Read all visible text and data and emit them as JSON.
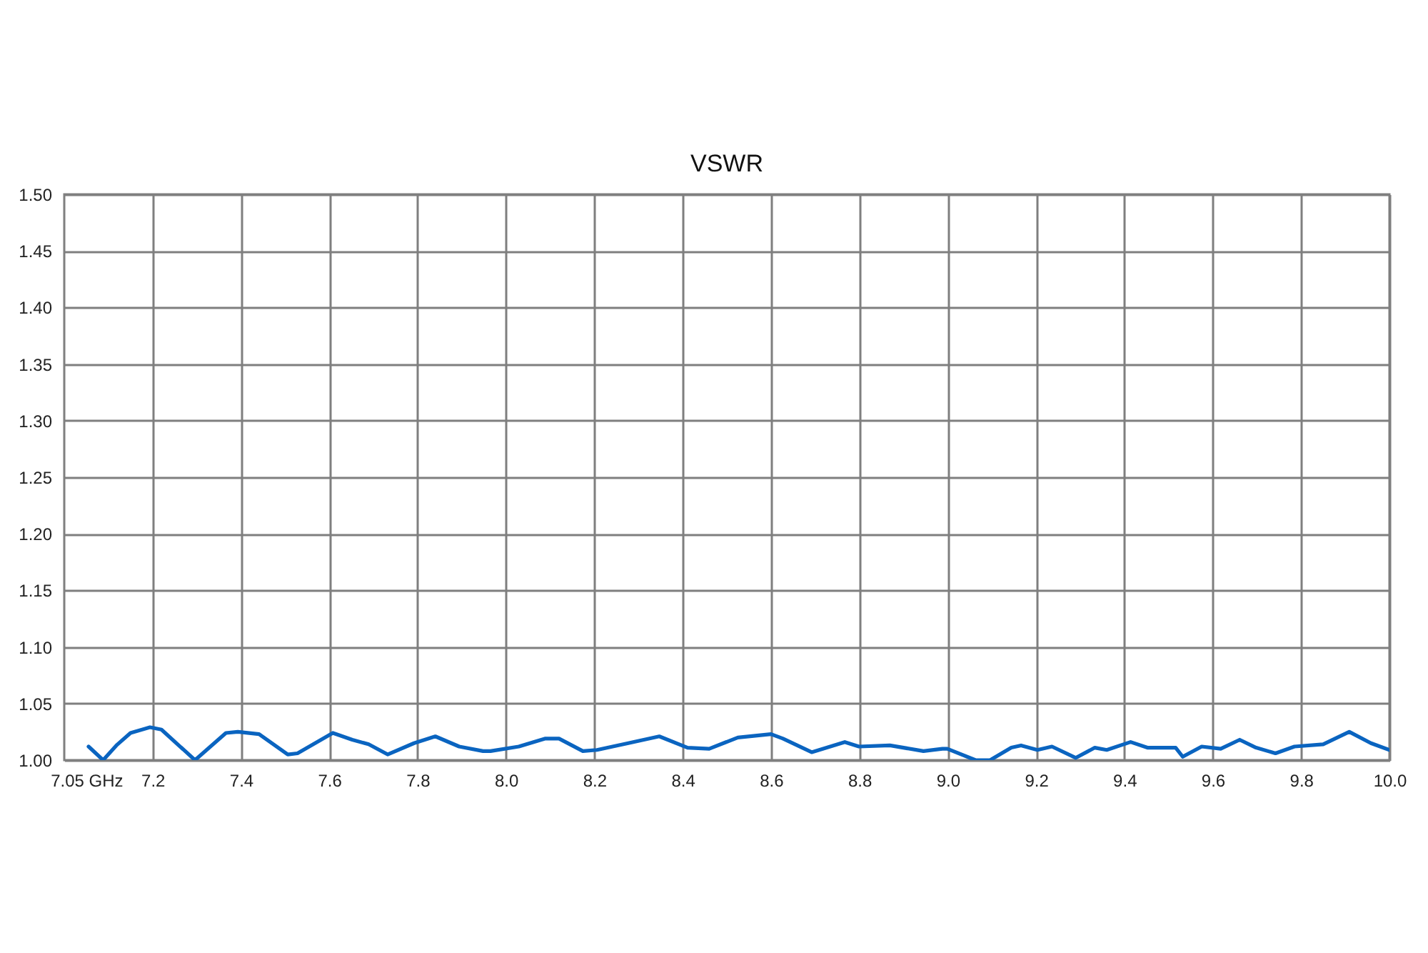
{
  "chart_data": {
    "type": "line",
    "title": "VSWR",
    "x": [
      7.055,
      7.088,
      7.118,
      7.15,
      7.194,
      7.22,
      7.296,
      7.366,
      7.393,
      7.441,
      7.506,
      7.528,
      7.608,
      7.652,
      7.689,
      7.732,
      7.792,
      7.84,
      7.894,
      7.948,
      7.965,
      8.029,
      8.088,
      8.12,
      8.174,
      8.206,
      8.277,
      8.347,
      8.411,
      8.46,
      8.525,
      8.6,
      8.627,
      8.692,
      8.767,
      8.799,
      8.869,
      8.945,
      8.988,
      8.999,
      9.063,
      9.096,
      9.144,
      9.166,
      9.203,
      9.236,
      9.29,
      9.333,
      9.36,
      9.414,
      9.452,
      9.516,
      9.532,
      9.575,
      9.618,
      9.661,
      9.698,
      9.742,
      9.785,
      9.85,
      9.909,
      9.958,
      10.0
    ],
    "series": [
      {
        "color": "#0a64c0",
        "values": [
          1.012,
          1.0,
          1.013,
          1.024,
          1.029,
          1.027,
          1.0,
          1.024,
          1.025,
          1.023,
          1.005,
          1.006,
          1.024,
          1.018,
          1.014,
          1.005,
          1.015,
          1.021,
          1.012,
          1.008,
          1.008,
          1.012,
          1.019,
          1.019,
          1.008,
          1.009,
          1.015,
          1.021,
          1.011,
          1.01,
          1.02,
          1.023,
          1.019,
          1.007,
          1.016,
          1.012,
          1.013,
          1.008,
          1.01,
          1.01,
          1.0,
          1.0,
          1.011,
          1.013,
          1.009,
          1.012,
          1.002,
          1.011,
          1.009,
          1.016,
          1.011,
          1.011,
          1.003,
          1.012,
          1.01,
          1.018,
          1.011,
          1.006,
          1.012,
          1.014,
          1.025,
          1.015,
          1.009
        ]
      }
    ],
    "xlim": [
      7.0,
      10.0
    ],
    "xticks": [
      {
        "value": 7.05,
        "label": "7.05 GHz"
      },
      7.2,
      7.4,
      7.6,
      7.8,
      {
        "value": 8.0,
        "label": "8.0"
      },
      8.2,
      8.4,
      8.6,
      8.8,
      {
        "value": 9.0,
        "label": "9.0"
      },
      9.2,
      9.4,
      9.6,
      9.8,
      {
        "value": 10.0,
        "label": "10.0"
      }
    ],
    "ylim": [
      1.0,
      1.5
    ],
    "yticks": [
      {
        "value": 1.0,
        "label": "1.00"
      },
      1.05,
      {
        "value": 1.1,
        "label": "1.10"
      },
      1.15,
      {
        "value": 1.2,
        "label": "1.20"
      },
      1.25,
      {
        "value": 1.3,
        "label": "1.30"
      },
      1.35,
      {
        "value": 1.4,
        "label": "1.40"
      },
      1.45,
      {
        "value": 1.5,
        "label": "1.50"
      }
    ],
    "grid": true,
    "marker": "none",
    "line_style": "solid"
  }
}
